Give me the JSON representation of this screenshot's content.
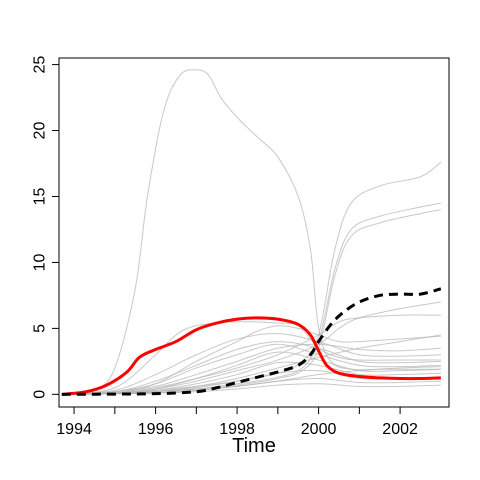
{
  "chart_data": {
    "type": "line",
    "title": "",
    "xlabel": "Time",
    "ylabel": "",
    "xlim": [
      1993.6,
      2003.0
    ],
    "ylim": [
      0,
      25
    ],
    "x_ticks": [
      1994,
      1995,
      1996,
      1997,
      1998,
      1999,
      2000,
      2001,
      2002
    ],
    "x_tick_labels": [
      "1994",
      "",
      "1996",
      "",
      "1998",
      "",
      "2000",
      "",
      "2002"
    ],
    "y_ticks": [
      0,
      5,
      10,
      15,
      20,
      25
    ],
    "y_tick_labels": [
      "0",
      "5",
      "10",
      "15",
      "20",
      "25"
    ],
    "grid": false,
    "legend": "none",
    "colors": {
      "highlight": "#ff0000",
      "dashed": "#000000",
      "background_series": "#bdbdbd"
    },
    "series": [
      {
        "style": "thin-gray",
        "x": [
          1993.7,
          1994.5,
          1995.0,
          1995.5,
          1995.8,
          1996.2,
          1996.6,
          1997.0,
          1997.3,
          1997.6,
          1998.0,
          1998.5,
          1999.0,
          1999.5,
          1999.8,
          2000.0,
          2000.3,
          2000.8,
          2001.5,
          2002.5,
          2003.0
        ],
        "y": [
          0,
          0.3,
          2.0,
          8.0,
          15.0,
          21.5,
          24.2,
          24.6,
          24.2,
          22.5,
          21.0,
          19.5,
          18.0,
          15.0,
          11.0,
          5.0,
          2.5,
          1.9,
          1.9,
          1.9,
          1.9
        ]
      },
      {
        "style": "thin-gray",
        "x": [
          1993.7,
          1995.0,
          1996.0,
          1997.0,
          1998.0,
          1999.0,
          1999.6,
          2000.0,
          2000.4,
          2000.8,
          2001.5,
          2002.5,
          2003.0
        ],
        "y": [
          0,
          0.1,
          0.3,
          0.6,
          1.0,
          1.6,
          2.5,
          4.5,
          11.0,
          14.5,
          15.8,
          16.5,
          17.6
        ]
      },
      {
        "style": "thin-gray",
        "x": [
          1993.7,
          1995.0,
          1996.0,
          1997.0,
          1998.0,
          1999.0,
          1999.6,
          2000.0,
          2000.4,
          2000.8,
          2001.5,
          2002.5,
          2003.0
        ],
        "y": [
          0,
          0.1,
          0.2,
          0.4,
          0.8,
          1.3,
          2.0,
          4.0,
          9.5,
          12.5,
          13.5,
          14.2,
          14.5
        ]
      },
      {
        "style": "thin-gray",
        "x": [
          1993.7,
          1995.0,
          1996.0,
          1997.0,
          1998.0,
          1999.0,
          1999.6,
          2000.0,
          2000.4,
          2000.8,
          2001.5,
          2002.5,
          2003.0
        ],
        "y": [
          0,
          0.1,
          0.2,
          0.4,
          0.7,
          1.2,
          1.8,
          3.5,
          9.0,
          12.0,
          13.0,
          13.7,
          14.0
        ]
      },
      {
        "style": "thin-gray",
        "x": [
          1993.7,
          1995.0,
          1996.0,
          1996.5,
          1997.0,
          1998.0,
          1999.0,
          1999.5,
          2000.0,
          2000.5,
          2001.0,
          2002.0,
          2003.0
        ],
        "y": [
          0,
          0.5,
          3.0,
          4.5,
          5.2,
          5.5,
          5.4,
          5.2,
          3.5,
          2.8,
          2.6,
          2.6,
          2.6
        ]
      },
      {
        "style": "thin-gray",
        "x": [
          1993.7,
          1995.0,
          1996.0,
          1997.0,
          1998.0,
          1998.5,
          1999.0,
          1999.5,
          2000.0,
          2000.5,
          2001.0,
          2002.0,
          2003.0
        ],
        "y": [
          0,
          0.1,
          0.8,
          2.5,
          4.0,
          4.8,
          5.2,
          5.0,
          4.5,
          4.0,
          4.0,
          4.2,
          4.4
        ]
      },
      {
        "style": "thin-gray",
        "x": [
          1993.7,
          1995.0,
          1996.0,
          1997.0,
          1998.0,
          1999.0,
          2000.0,
          2000.5,
          2001.0,
          2002.0,
          2003.0
        ],
        "y": [
          0,
          0.1,
          0.5,
          1.2,
          2.0,
          3.0,
          4.5,
          5.5,
          5.8,
          6.0,
          6.0
        ]
      },
      {
        "style": "thin-gray",
        "x": [
          1993.7,
          1995.0,
          1996.0,
          1997.0,
          1998.0,
          1999.0,
          2000.0,
          2000.5,
          2001.0,
          2002.0,
          2003.0
        ],
        "y": [
          0,
          0.1,
          0.4,
          1.0,
          1.8,
          2.6,
          3.8,
          5.0,
          5.8,
          6.5,
          7.0
        ]
      },
      {
        "style": "thin-gray",
        "x": [
          1993.7,
          1995.0,
          1996.0,
          1997.0,
          1998.0,
          1999.0,
          2000.0,
          2001.0,
          2002.0,
          2003.0
        ],
        "y": [
          0,
          0.2,
          0.6,
          1.5,
          2.5,
          3.5,
          3.8,
          3.4,
          3.3,
          3.5
        ]
      },
      {
        "style": "thin-gray",
        "x": [
          1993.7,
          1995.0,
          1996.0,
          1997.0,
          1998.0,
          1999.0,
          2000.0,
          2001.0,
          2002.0,
          2003.0
        ],
        "y": [
          0,
          0.2,
          0.8,
          2.0,
          3.0,
          3.8,
          3.0,
          2.2,
          2.1,
          2.2
        ]
      },
      {
        "style": "thin-gray",
        "x": [
          1993.7,
          1995.0,
          1996.0,
          1997.0,
          1998.0,
          1999.0,
          2000.0,
          2001.0,
          2002.0,
          2003.0
        ],
        "y": [
          0,
          0.1,
          0.4,
          1.2,
          2.2,
          3.2,
          2.6,
          1.8,
          1.8,
          1.9
        ]
      },
      {
        "style": "thin-gray",
        "x": [
          1993.7,
          1995.0,
          1996.0,
          1997.0,
          1998.0,
          1999.0,
          2000.0,
          2001.0,
          2002.0,
          2003.0
        ],
        "y": [
          0,
          0.1,
          0.3,
          0.8,
          1.5,
          2.4,
          2.2,
          1.5,
          1.5,
          1.6
        ]
      },
      {
        "style": "thin-gray",
        "x": [
          1993.7,
          1995.0,
          1996.0,
          1997.0,
          1998.0,
          1999.0,
          2000.0,
          2001.0,
          2002.0,
          2003.0
        ],
        "y": [
          0,
          0.1,
          0.2,
          0.5,
          1.0,
          1.6,
          1.8,
          1.2,
          1.2,
          1.3
        ]
      },
      {
        "style": "thin-gray",
        "x": [
          1993.7,
          1995.0,
          1996.0,
          1997.0,
          1998.0,
          1999.0,
          2000.0,
          2001.0,
          2002.0,
          2003.0
        ],
        "y": [
          0,
          0.05,
          0.1,
          0.3,
          0.6,
          1.0,
          1.2,
          0.9,
          0.9,
          1.0
        ]
      },
      {
        "style": "thin-gray",
        "x": [
          1993.7,
          1995.0,
          1996.0,
          1997.0,
          1998.0,
          1999.0,
          2000.0,
          2001.0,
          2002.0,
          2003.0
        ],
        "y": [
          0,
          0.05,
          0.1,
          0.2,
          0.4,
          0.7,
          0.8,
          0.6,
          0.6,
          0.7
        ]
      },
      {
        "style": "thin-gray",
        "x": [
          1993.7,
          1995.0,
          1996.0,
          1997.0,
          1998.0,
          1999.0,
          2000.0,
          2001.0,
          2002.0,
          2003.0
        ],
        "y": [
          0,
          0.3,
          1.5,
          3.0,
          4.2,
          4.6,
          4.0,
          3.0,
          2.9,
          3.0
        ]
      },
      {
        "style": "thin-gray",
        "x": [
          1993.7,
          1995.0,
          1996.0,
          1997.0,
          1998.0,
          1999.0,
          2000.0,
          2001.0,
          2002.0,
          2003.0
        ],
        "y": [
          0,
          0.2,
          1.0,
          2.2,
          3.4,
          4.0,
          3.5,
          2.5,
          2.4,
          2.5
        ]
      },
      {
        "style": "thin-gray",
        "x": [
          1993.7,
          1995.0,
          1996.0,
          1997.0,
          1998.0,
          1999.0,
          2000.0,
          2001.0,
          2002.0,
          2003.0
        ],
        "y": [
          0,
          0.05,
          0.2,
          0.6,
          1.2,
          2.0,
          2.8,
          3.5,
          4.0,
          4.5
        ]
      },
      {
        "style": "thin-gray",
        "x": [
          1993.7,
          1995.0,
          1996.0,
          1997.0,
          1998.0,
          1999.0,
          2000.0,
          2001.0,
          2002.0,
          2003.0
        ],
        "y": [
          0,
          0.05,
          0.1,
          0.3,
          0.6,
          1.0,
          1.5,
          1.8,
          2.0,
          2.1
        ]
      },
      {
        "style": "red-bold",
        "x": [
          1993.7,
          1994.3,
          1994.8,
          1995.3,
          1995.6,
          1996.0,
          1996.5,
          1997.0,
          1997.5,
          1998.0,
          1998.5,
          1999.0,
          1999.5,
          1999.8,
          2000.0,
          2000.2,
          2000.5,
          2001.0,
          2001.5,
          2002.0,
          2002.5,
          2003.0
        ],
        "y": [
          0,
          0.2,
          0.7,
          1.7,
          2.8,
          3.4,
          4.0,
          4.9,
          5.4,
          5.7,
          5.8,
          5.7,
          5.3,
          4.5,
          3.3,
          2.2,
          1.6,
          1.35,
          1.25,
          1.2,
          1.2,
          1.25
        ]
      },
      {
        "style": "black-dashed",
        "x": [
          1993.7,
          1995.0,
          1996.0,
          1997.0,
          1997.5,
          1998.0,
          1998.5,
          1999.0,
          1999.5,
          1999.8,
          2000.0,
          2000.3,
          2000.6,
          2001.0,
          2001.5,
          2002.0,
          2002.5,
          2003.0
        ],
        "y": [
          0,
          0.02,
          0.05,
          0.2,
          0.5,
          0.9,
          1.3,
          1.7,
          2.2,
          3.0,
          4.0,
          5.3,
          6.2,
          7.0,
          7.5,
          7.6,
          7.6,
          8.0
        ]
      }
    ]
  }
}
